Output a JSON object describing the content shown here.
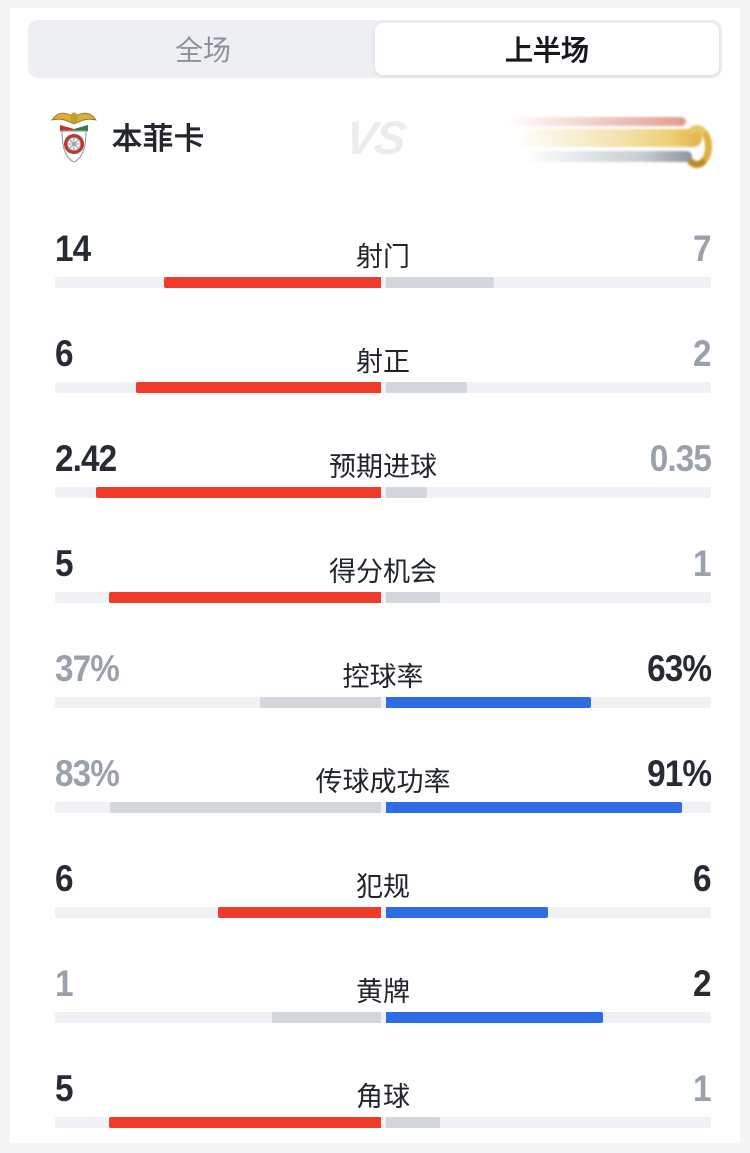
{
  "tabs": [
    {
      "label": "全场",
      "active": false
    },
    {
      "label": "上半场",
      "active": true
    }
  ],
  "home_team": {
    "name": "本菲卡"
  },
  "vs_label": "VS",
  "colors": {
    "home_bar": "#ee3b2c",
    "away_bar": "#2e6de4",
    "lost_bar": "#d3d6db",
    "track": "#f0f1f4",
    "value_dark": "#272b33",
    "value_gray": "#9aa1ad"
  },
  "chart_data": {
    "type": "bar",
    "note": "head-to-head stat bars, each side length = value share of half track",
    "stats": [
      {
        "label": "射门",
        "left": "14",
        "right": "7",
        "leader": "left",
        "percent": false
      },
      {
        "label": "射正",
        "left": "6",
        "right": "2",
        "leader": "left",
        "percent": false
      },
      {
        "label": "预期进球",
        "left": "2.42",
        "right": "0.35",
        "leader": "left",
        "percent": false
      },
      {
        "label": "得分机会",
        "left": "5",
        "right": "1",
        "leader": "left",
        "percent": false
      },
      {
        "label": "控球率",
        "left": "37%",
        "right": "63%",
        "leader": "right",
        "percent": true
      },
      {
        "label": "传球成功率",
        "left": "83%",
        "right": "91%",
        "leader": "right",
        "percent": true
      },
      {
        "label": "犯规",
        "left": "6",
        "right": "6",
        "leader": "both",
        "percent": false
      },
      {
        "label": "黄牌",
        "left": "1",
        "right": "2",
        "leader": "right",
        "percent": false
      },
      {
        "label": "角球",
        "left": "5",
        "right": "1",
        "leader": "left",
        "percent": false
      }
    ]
  }
}
